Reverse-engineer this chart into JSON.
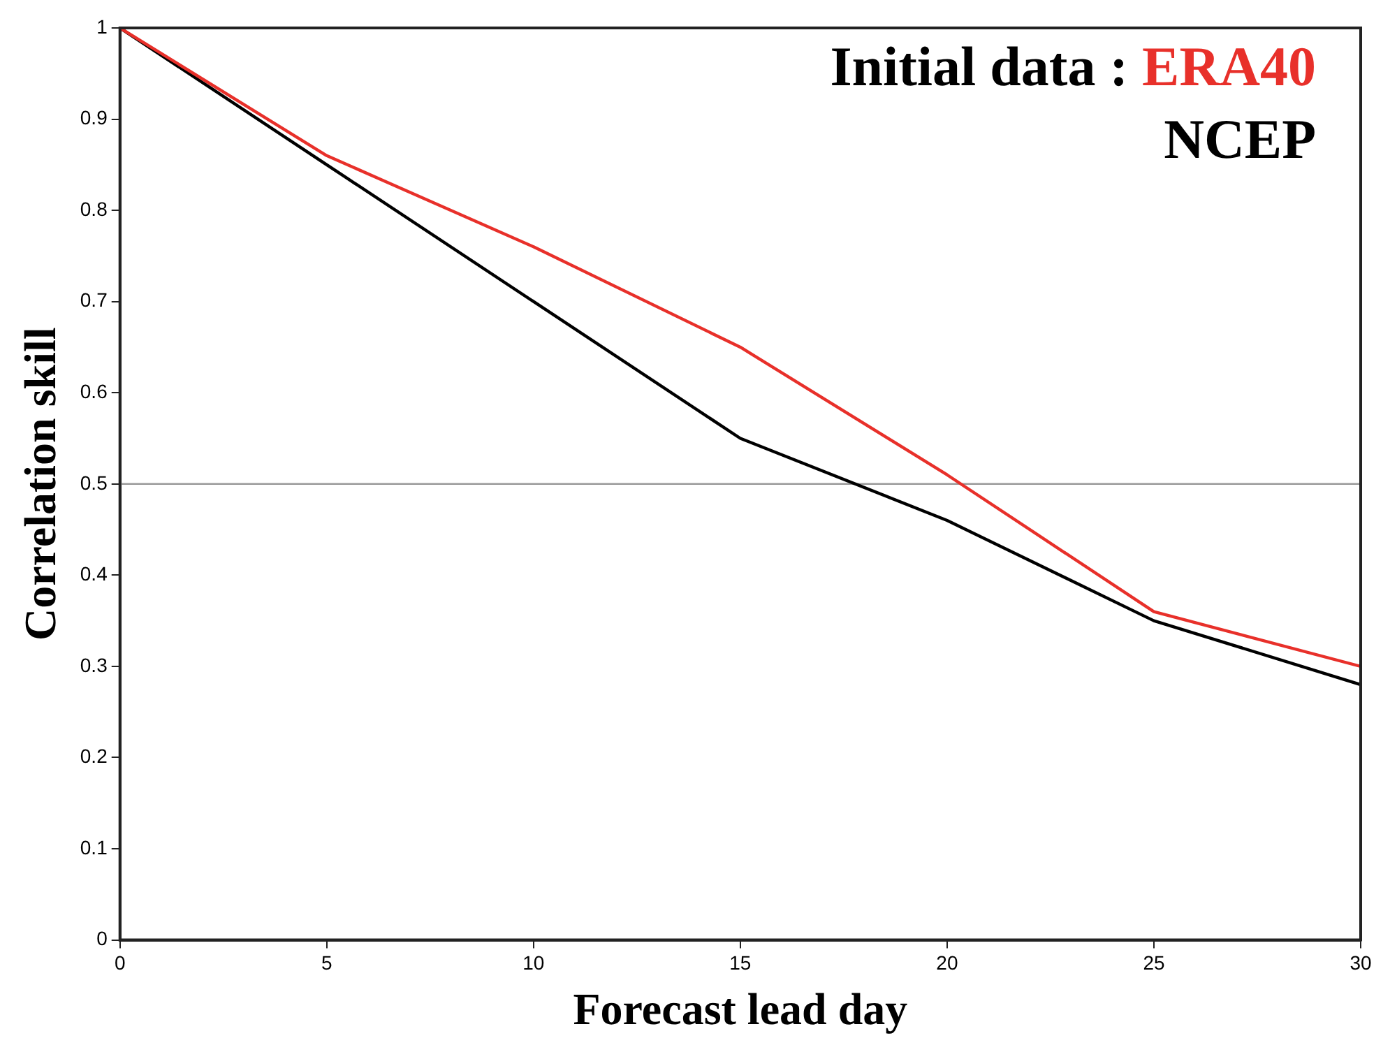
{
  "chart_data": {
    "type": "line",
    "xlabel": "Forecast lead day",
    "ylabel": "Correlation skill",
    "legend_title": "Initial data :",
    "legend": "top right",
    "grid": false,
    "marker": "none",
    "line_style": "solid",
    "x": [
      0,
      5,
      10,
      15,
      20,
      25,
      30
    ],
    "xlim": [
      0,
      30
    ],
    "xticks": [
      0,
      5,
      10,
      15,
      20,
      25,
      30
    ],
    "ylim": [
      0,
      1
    ],
    "yticks": [
      0,
      0.1,
      0.2,
      0.3,
      0.4,
      0.5,
      0.6,
      0.7,
      0.8,
      0.9,
      1
    ],
    "series": [
      {
        "name": "ERA40",
        "color": "#e8302a",
        "values": [
          1,
          0.86,
          0.76,
          0.65,
          0.51,
          0.36,
          0.3
        ]
      },
      {
        "name": "NCEP",
        "color": "#000000",
        "values": [
          1,
          0.85,
          0.7,
          0.55,
          0.46,
          0.35,
          0.28
        ]
      }
    ],
    "ref_lines": [
      {
        "axis": "y",
        "value": 0.5,
        "color": "#999999",
        "line_style": "solid"
      }
    ]
  }
}
